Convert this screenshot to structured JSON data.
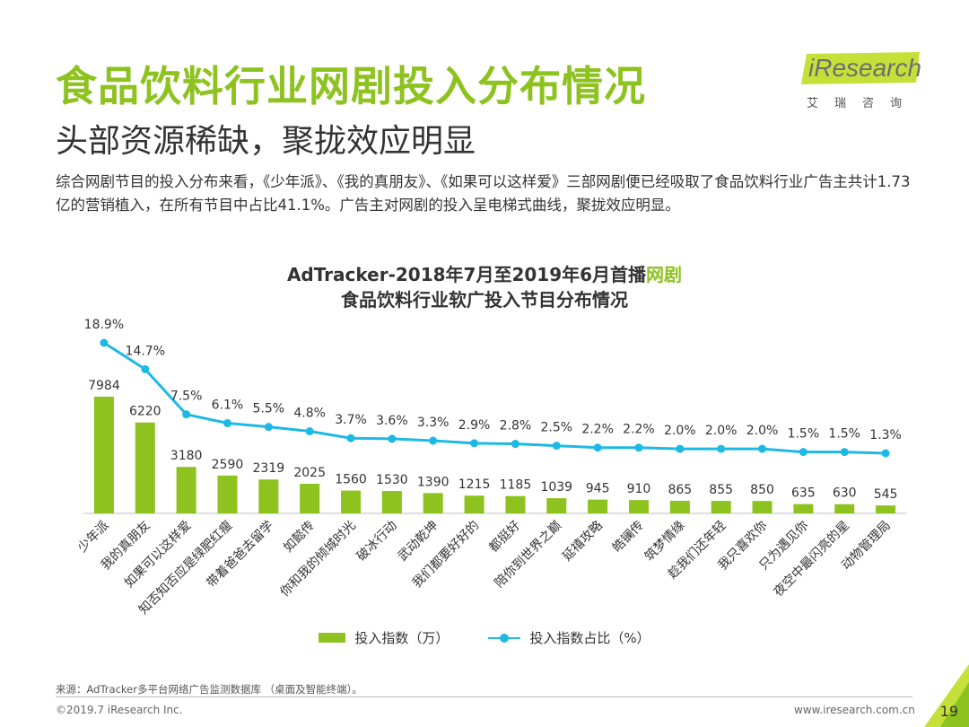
{
  "slide": {
    "title": "食品饮料行业网剧投入分布情况",
    "subtitle": "头部资源稀缺，聚拢效应明显",
    "summary": "综合网剧节目的投入分布来看，《少年派》、《我的真朋友》、《如果可以这样爱》三部网剧便已经吸取了食品饮料行业广告主共计1.73亿的营销植入，在所有节目中占比41.1%。广告主对网剧的投入呈电梯式曲线，聚拢效应明显。",
    "logo_text": "iResearch",
    "logo_sub": "艾瑞咨询",
    "source": "来源：AdTracker多平台网络广告监测数据库 （桌面及智能终端）。",
    "copyright": "©2019.7 iResearch Inc.",
    "website": "www.iresearch.com.cn",
    "page_number": "19"
  },
  "colors": {
    "accent": "#8dc21f",
    "line": "#1db9e4",
    "text": "#333333"
  },
  "chart_data": {
    "type": "bar",
    "title_line1_prefix": "AdTracker-2018年7月至2019年6月首播",
    "title_line1_highlight": "网剧",
    "title_line2": "食品饮料行业软广投入节目分布情况",
    "categories": [
      "少年派",
      "我的真朋友",
      "如果可以这样爱",
      "知否知否应是绿肥红瘦",
      "带着爸爸去留学",
      "如懿传",
      "你和我的倾城时光",
      "破冰行动",
      "武动乾坤",
      "我们都要好好的",
      "都挺好",
      "陪你到世界之巅",
      "延禧攻略",
      "皓镧传",
      "筑梦情缘",
      "趁我们还年轻",
      "我只喜欢你",
      "只为遇见你",
      "夜空中最闪亮的星",
      "动物管理局"
    ],
    "series": [
      {
        "name": "投入指数（万）",
        "type": "bar",
        "values": [
          7984,
          6220,
          3180,
          2590,
          2319,
          2025,
          1560,
          1530,
          1390,
          1215,
          1185,
          1039,
          945,
          910,
          865,
          855,
          850,
          635,
          630,
          545
        ]
      },
      {
        "name": "投入指数占比（%）",
        "type": "line",
        "values": [
          18.9,
          14.7,
          7.5,
          6.1,
          5.5,
          4.8,
          3.7,
          3.6,
          3.3,
          2.9,
          2.8,
          2.5,
          2.2,
          2.2,
          2.0,
          2.0,
          2.0,
          1.5,
          1.5,
          1.3
        ],
        "labels": [
          "18.9%",
          "14.7%",
          "7.5%",
          "6.1%",
          "5.5%",
          "4.8%",
          "3.7%",
          "3.6%",
          "3.3%",
          "2.9%",
          "2.8%",
          "2.5%",
          "2.2%",
          "2.2%",
          "2.0%",
          "2.0%",
          "2.0%",
          "1.5%",
          "1.5%",
          "1.3%"
        ]
      }
    ],
    "ylim_bar": [
      0,
      10000
    ],
    "ylim_line": [
      0,
      25
    ],
    "xlabel": "",
    "ylabel": "",
    "grid": false,
    "legend": "bottom"
  }
}
